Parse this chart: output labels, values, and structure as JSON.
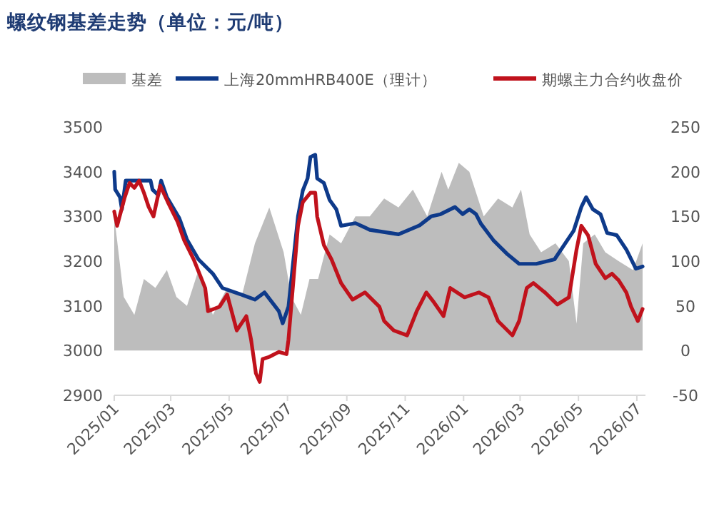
{
  "chart_data": {
    "type": "line",
    "title": "螺纹钢基差走势（单位：元/吨）",
    "legend": "top",
    "grid": false,
    "xlim": [
      "2025-01-01",
      "2026-07-10"
    ],
    "xticks": [
      {
        "value": "2025-01-01",
        "label": "2025/01"
      },
      {
        "value": "2025-03-01",
        "label": "2025/03"
      },
      {
        "value": "2025-05-01",
        "label": "2025/05"
      },
      {
        "value": "2025-07-01",
        "label": "2025/07"
      },
      {
        "value": "2025-09-01",
        "label": "2025/09"
      },
      {
        "value": "2025-11-01",
        "label": "2025/11"
      },
      {
        "value": "2026-01-01",
        "label": "2026/01"
      },
      {
        "value": "2026-03-01",
        "label": "2026/03"
      },
      {
        "value": "2026-05-01",
        "label": "2026/05"
      },
      {
        "value": "2026-07-01",
        "label": "2026/07"
      }
    ],
    "ylim": [
      2900,
      3500
    ],
    "yticks": [
      2900,
      3000,
      3100,
      3200,
      3300,
      3400,
      3500
    ],
    "y2lim": [
      -50,
      250
    ],
    "y2ticks": [
      -50,
      0,
      50,
      100,
      150,
      200,
      250
    ],
    "series": [
      {
        "name": "基差",
        "type": "area",
        "axis": "y2",
        "color": "#bdbdbd",
        "x": [
          "2025-01-01",
          "2025-01-11",
          "2025-01-22",
          "2025-02-01",
          "2025-02-13",
          "2025-02-25",
          "2025-03-07",
          "2025-03-18",
          "2025-03-30",
          "2025-04-14",
          "2025-04-29",
          "2025-05-14",
          "2025-05-28",
          "2025-06-12",
          "2025-06-27",
          "2025-07-05",
          "2025-07-15",
          "2025-07-24",
          "2025-08-02",
          "2025-08-14",
          "2025-08-26",
          "2025-09-10",
          "2025-09-25",
          "2025-10-10",
          "2025-10-25",
          "2025-11-09",
          "2025-11-24",
          "2025-12-09",
          "2025-12-16",
          "2025-12-27",
          "2026-01-07",
          "2026-01-22",
          "2026-02-06",
          "2026-02-21",
          "2026-03-02",
          "2026-03-11",
          "2026-03-23",
          "2026-04-07",
          "2026-04-21",
          "2026-04-29",
          "2026-05-06",
          "2026-05-18",
          "2026-05-29",
          "2026-06-12",
          "2026-06-27",
          "2026-07-07"
        ],
        "values": [
          150,
          60,
          40,
          80,
          70,
          90,
          60,
          50,
          90,
          40,
          70,
          60,
          120,
          160,
          110,
          60,
          40,
          80,
          80,
          130,
          120,
          150,
          150,
          170,
          160,
          180,
          150,
          200,
          180,
          210,
          200,
          150,
          170,
          160,
          180,
          130,
          110,
          120,
          100,
          30,
          120,
          130,
          110,
          100,
          90,
          120
        ]
      },
      {
        "name": "上海20mmHRB400E（理计）",
        "color": "#0e3a8a",
        "x": [
          "2025-01-01",
          "2025-01-02",
          "2025-01-07",
          "2025-01-09",
          "2025-01-13",
          "2025-02-08",
          "2025-02-10",
          "2025-02-16",
          "2025-02-19",
          "2025-02-25",
          "2025-03-10",
          "2025-03-18",
          "2025-03-30",
          "2025-04-14",
          "2025-04-24",
          "2025-05-14",
          "2025-05-28",
          "2025-06-07",
          "2025-06-22",
          "2025-06-26",
          "2025-07-02",
          "2025-07-12",
          "2025-07-17",
          "2025-07-22",
          "2025-07-25",
          "2025-07-30",
          "2025-08-01",
          "2025-08-08",
          "2025-08-14",
          "2025-08-21",
          "2025-08-26",
          "2025-09-10",
          "2025-09-25",
          "2025-10-25",
          "2025-11-16",
          "2025-11-28",
          "2025-12-08",
          "2025-12-23",
          "2025-12-31",
          "2026-01-07",
          "2026-01-14",
          "2026-01-19",
          "2026-02-01",
          "2026-02-16",
          "2026-02-28",
          "2026-03-18",
          "2026-04-06",
          "2026-04-26",
          "2026-05-04",
          "2026-05-09",
          "2026-05-16",
          "2026-05-24",
          "2026-05-31",
          "2026-06-10",
          "2026-06-20",
          "2026-06-30",
          "2026-07-07"
        ],
        "values": [
          3400,
          3360,
          3343,
          3316,
          3380,
          3380,
          3360,
          3348,
          3380,
          3343,
          3296,
          3248,
          3204,
          3172,
          3140,
          3125,
          3114,
          3130,
          3088,
          3061,
          3098,
          3300,
          3358,
          3385,
          3433,
          3438,
          3385,
          3375,
          3337,
          3316,
          3279,
          3285,
          3270,
          3260,
          3280,
          3300,
          3305,
          3321,
          3305,
          3316,
          3305,
          3284,
          3247,
          3215,
          3194,
          3194,
          3204,
          3268,
          3321,
          3343,
          3316,
          3305,
          3263,
          3258,
          3226,
          3183,
          3188
        ]
      },
      {
        "name": "期螺主力合约收盘价",
        "color": "#c0121c",
        "x": [
          "2025-01-01",
          "2025-01-04",
          "2025-01-12",
          "2025-01-17",
          "2025-01-22",
          "2025-01-27",
          "2025-02-01",
          "2025-02-06",
          "2025-02-11",
          "2025-02-18",
          "2025-02-26",
          "2025-03-08",
          "2025-03-15",
          "2025-03-25",
          "2025-04-06",
          "2025-04-09",
          "2025-04-21",
          "2025-04-29",
          "2025-05-09",
          "2025-05-19",
          "2025-05-24",
          "2025-05-29",
          "2025-06-02",
          "2025-06-05",
          "2025-06-12",
          "2025-06-22",
          "2025-06-30",
          "2025-07-02",
          "2025-07-12",
          "2025-07-17",
          "2025-07-25",
          "2025-07-30",
          "2025-08-01",
          "2025-08-08",
          "2025-08-16",
          "2025-08-26",
          "2025-09-07",
          "2025-09-20",
          "2025-10-05",
          "2025-10-10",
          "2025-10-20",
          "2025-11-03",
          "2025-11-13",
          "2025-11-23",
          "2025-12-01",
          "2025-12-11",
          "2025-12-18",
          "2026-01-02",
          "2026-01-17",
          "2026-01-27",
          "2026-02-06",
          "2026-02-21",
          "2026-02-28",
          "2026-03-08",
          "2026-03-15",
          "2026-03-27",
          "2026-04-09",
          "2026-04-21",
          "2026-04-29",
          "2026-05-04",
          "2026-05-11",
          "2026-05-19",
          "2026-05-29",
          "2026-06-05",
          "2026-06-12",
          "2026-06-20",
          "2026-06-25",
          "2026-07-02",
          "2026-07-07"
        ],
        "values": [
          3311,
          3279,
          3343,
          3375,
          3364,
          3380,
          3353,
          3321,
          3300,
          3369,
          3332,
          3289,
          3247,
          3204,
          3140,
          3088,
          3098,
          3125,
          3045,
          3077,
          3024,
          2949,
          2930,
          2981,
          2986,
          2997,
          2992,
          3024,
          3279,
          3332,
          3353,
          3353,
          3300,
          3236,
          3204,
          3151,
          3114,
          3130,
          3098,
          3066,
          3045,
          3034,
          3088,
          3130,
          3108,
          3077,
          3140,
          3119,
          3130,
          3119,
          3066,
          3034,
          3066,
          3140,
          3151,
          3130,
          3103,
          3119,
          3226,
          3279,
          3258,
          3194,
          3162,
          3172,
          3157,
          3130,
          3098,
          3066,
          3093
        ]
      }
    ]
  }
}
